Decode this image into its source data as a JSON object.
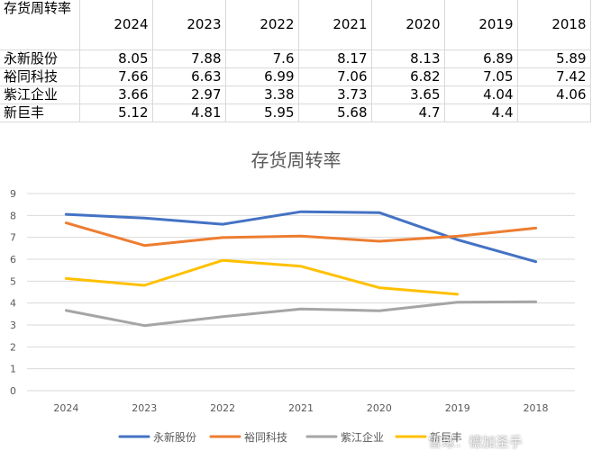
{
  "table": {
    "corner_label": "存货周转率",
    "years": [
      "2024",
      "2023",
      "2022",
      "2021",
      "2020",
      "2019",
      "2018"
    ],
    "rows": [
      {
        "name": "永新股份",
        "values": [
          "8.05",
          "7.88",
          "7.6",
          "8.17",
          "8.13",
          "6.89",
          "5.89"
        ]
      },
      {
        "name": "裕同科技",
        "values": [
          "7.66",
          "6.63",
          "6.99",
          "7.06",
          "6.82",
          "7.05",
          "7.42"
        ]
      },
      {
        "name": "紫江企业",
        "values": [
          "3.66",
          "2.97",
          "3.38",
          "3.73",
          "3.65",
          "4.04",
          "4.06"
        ]
      },
      {
        "name": "新巨丰",
        "values": [
          "5.12",
          "4.81",
          "5.95",
          "5.68",
          "4.7",
          "4.4",
          ""
        ]
      }
    ]
  },
  "chart_data": {
    "type": "line",
    "title": "存货周转率",
    "categories": [
      "2024",
      "2023",
      "2022",
      "2021",
      "2020",
      "2019",
      "2018"
    ],
    "ylim": [
      0,
      9
    ],
    "yticks": [
      0,
      1,
      2,
      3,
      4,
      5,
      6,
      7,
      8,
      9
    ],
    "grid": true,
    "legend_position": "bottom",
    "series": [
      {
        "name": "永新股份",
        "color": "#4472c4",
        "values": [
          8.05,
          7.88,
          7.6,
          8.17,
          8.13,
          6.89,
          5.89
        ]
      },
      {
        "name": "裕同科技",
        "color": "#ed7d31",
        "values": [
          7.66,
          6.63,
          6.99,
          7.06,
          6.82,
          7.05,
          7.42
        ]
      },
      {
        "name": "紫江企业",
        "color": "#a5a5a5",
        "values": [
          3.66,
          2.97,
          3.38,
          3.73,
          3.65,
          4.04,
          4.06
        ]
      },
      {
        "name": "新巨丰",
        "color": "#ffc000",
        "values": [
          5.12,
          4.81,
          5.95,
          5.68,
          4.7,
          4.4,
          null
        ]
      }
    ]
  },
  "watermark": "雪球：德加圣手"
}
